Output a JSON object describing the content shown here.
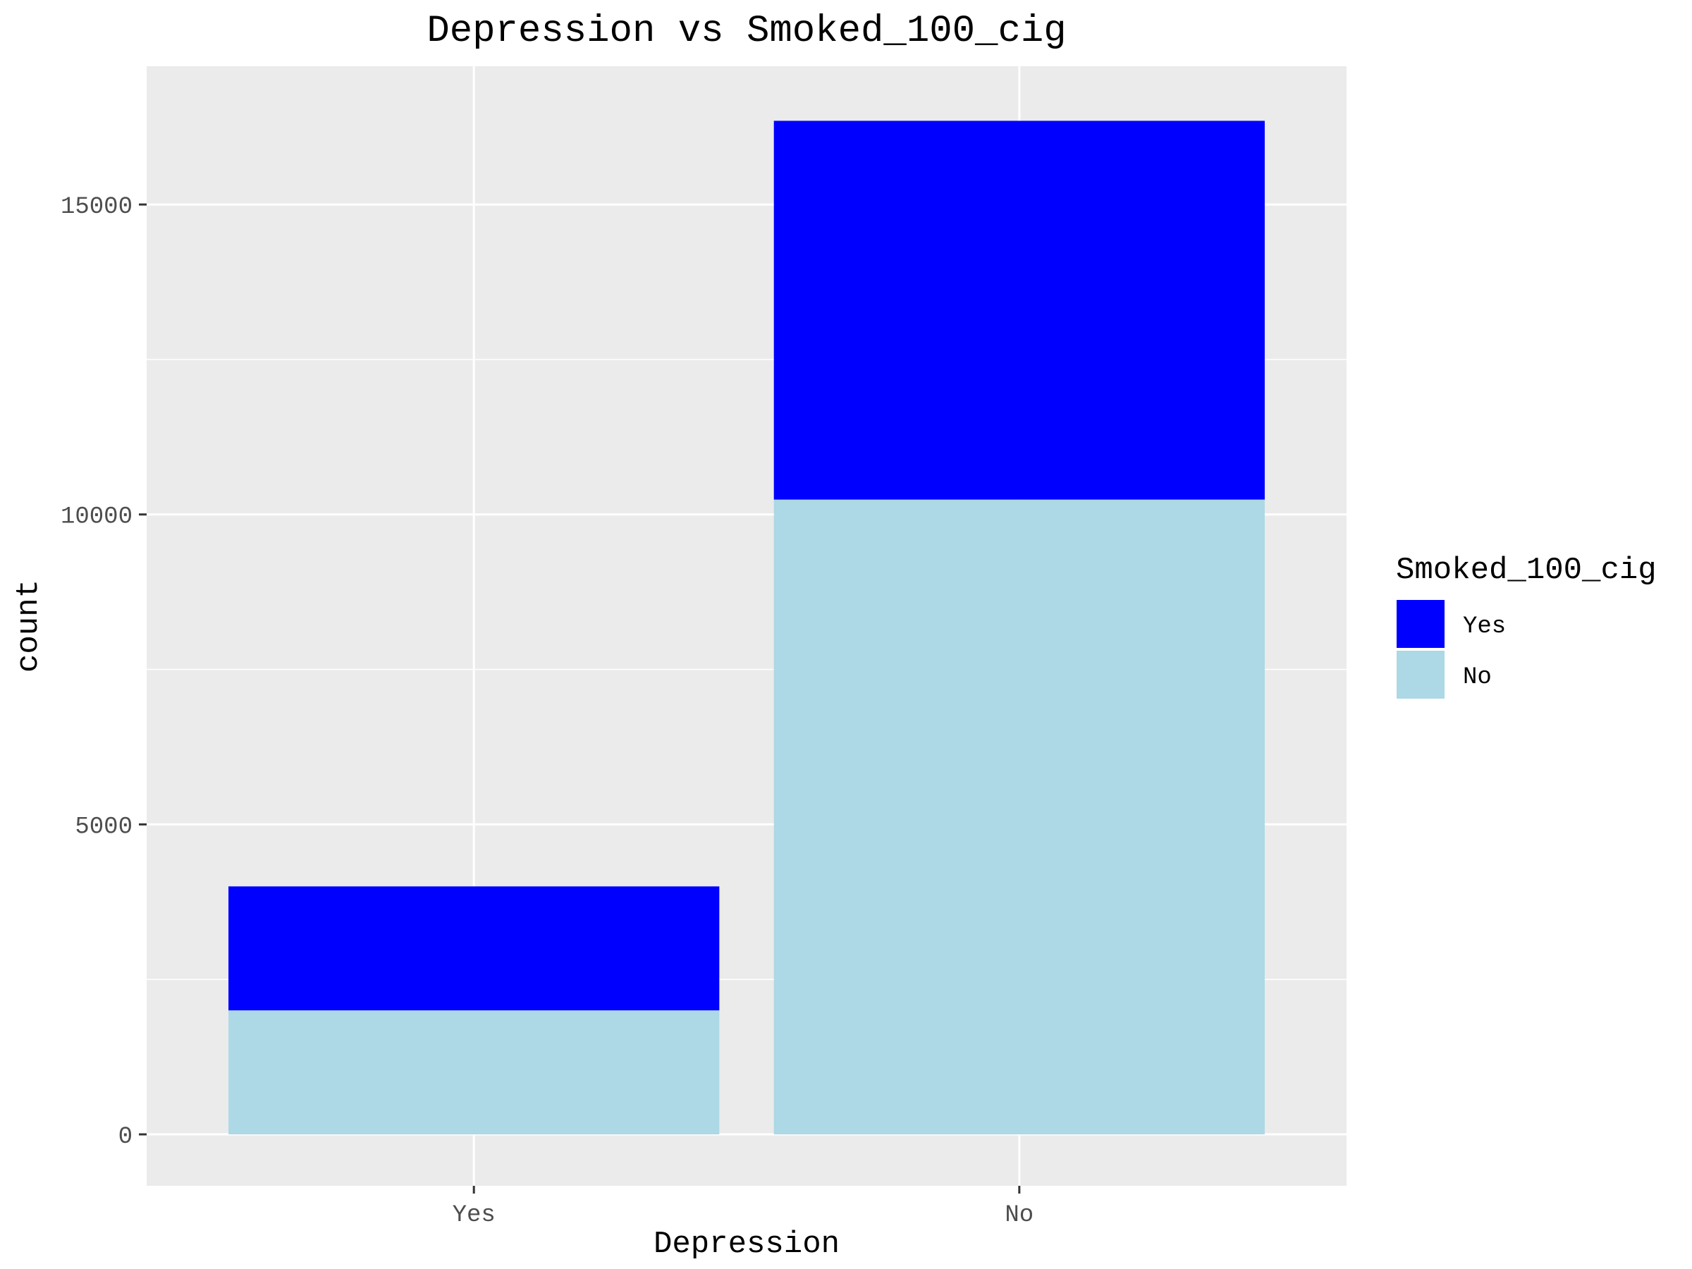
{
  "chart_data": {
    "type": "bar",
    "stacked": true,
    "title": "Depression vs Smoked_100_cig",
    "xlabel": "Depression",
    "ylabel": "count",
    "categories": [
      "Yes",
      "No"
    ],
    "series": [
      {
        "name": "No",
        "values": [
          2000,
          10240
        ]
      },
      {
        "name": "Yes",
        "values": [
          2000,
          6110
        ]
      }
    ],
    "ylim": [
      -830,
      17230
    ],
    "yticks": [
      0,
      5000,
      10000,
      15000
    ],
    "grid": true,
    "legend": {
      "title": "Smoked_100_cig",
      "position": "right",
      "entries": [
        "Yes",
        "No"
      ]
    },
    "colors": {
      "Yes": "#0000FF",
      "No": "#ADD8E6",
      "panel": "#EBEBEB",
      "gridline": "#FFFFFF"
    }
  }
}
